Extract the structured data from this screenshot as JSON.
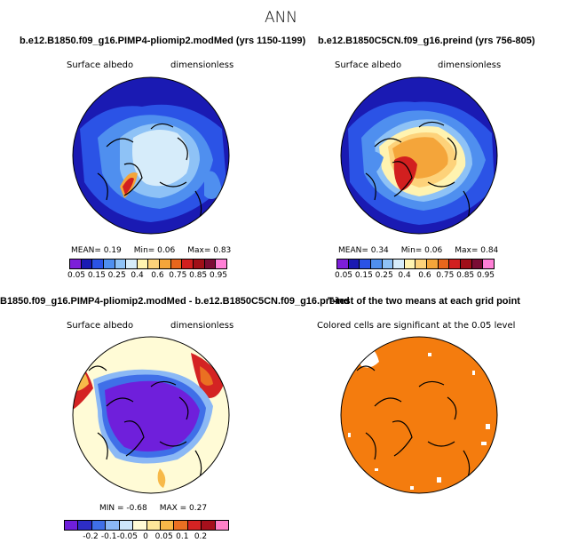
{
  "figure_title": "ANN",
  "panels": [
    {
      "title": "b.e12.B1850.f09_g16.PIMP4-pliomip2.modMed (yrs 1150-1199)",
      "variable": "Surface albedo",
      "units": "dimensionless",
      "stats": {
        "mean": "MEAN=   0.19",
        "min": "Min=   0.06",
        "max": "Max=   0.83"
      },
      "colorbar_ticks": [
        "0.05",
        "0.15",
        "0.25",
        "0.4",
        "0.6",
        "0.75",
        "0.85",
        "0.95"
      ]
    },
    {
      "title": "b.e12.B1850C5CN.f09_g16.preind (yrs 756-805)",
      "variable": "Surface albedo",
      "units": "dimensionless",
      "stats": {
        "mean": "MEAN=   0.34",
        "min": "Min=   0.06",
        "max": "Max=   0.84"
      },
      "colorbar_ticks": [
        "0.05",
        "0.15",
        "0.25",
        "0.4",
        "0.6",
        "0.75",
        "0.85",
        "0.95"
      ]
    },
    {
      "title": "B1850.f09_g16.PIMP4-pliomip2.modMed - b.e12.B1850C5CN.f09_g16.preind",
      "variable": "Surface albedo",
      "units": "dimensionless",
      "stats": {
        "min": "MIN =  -0.68",
        "max": "MAX =   0.27"
      },
      "colorbar_ticks": [
        "-0.2",
        "-0.1",
        "-0.05",
        "0",
        "0.05",
        "0.1",
        "0.2"
      ]
    },
    {
      "title": "T-test of the two means at each grid point",
      "note": "Colored cells are significant at the 0.05 level"
    }
  ],
  "colors": {
    "abs_scale": [
      "#7d1fd9",
      "#1a1ab3",
      "#2b53e6",
      "#4f8fef",
      "#8ec2f6",
      "#d6ecfa",
      "#fff3b0",
      "#fdd27a",
      "#f4a53a",
      "#e8661c",
      "#d21f1f",
      "#a00f18",
      "#7a0b34",
      "#ff7fd6"
    ],
    "diff_scale": [
      "#6f1fdb",
      "#2d2dc6",
      "#3f6fe8",
      "#8bb8f5",
      "#cde6fb",
      "#fffbd6",
      "#fde79a",
      "#f7b949",
      "#ea7022",
      "#d42323",
      "#a6101c",
      "#ff80c8"
    ],
    "ttest_fill": "#f47c0e"
  }
}
